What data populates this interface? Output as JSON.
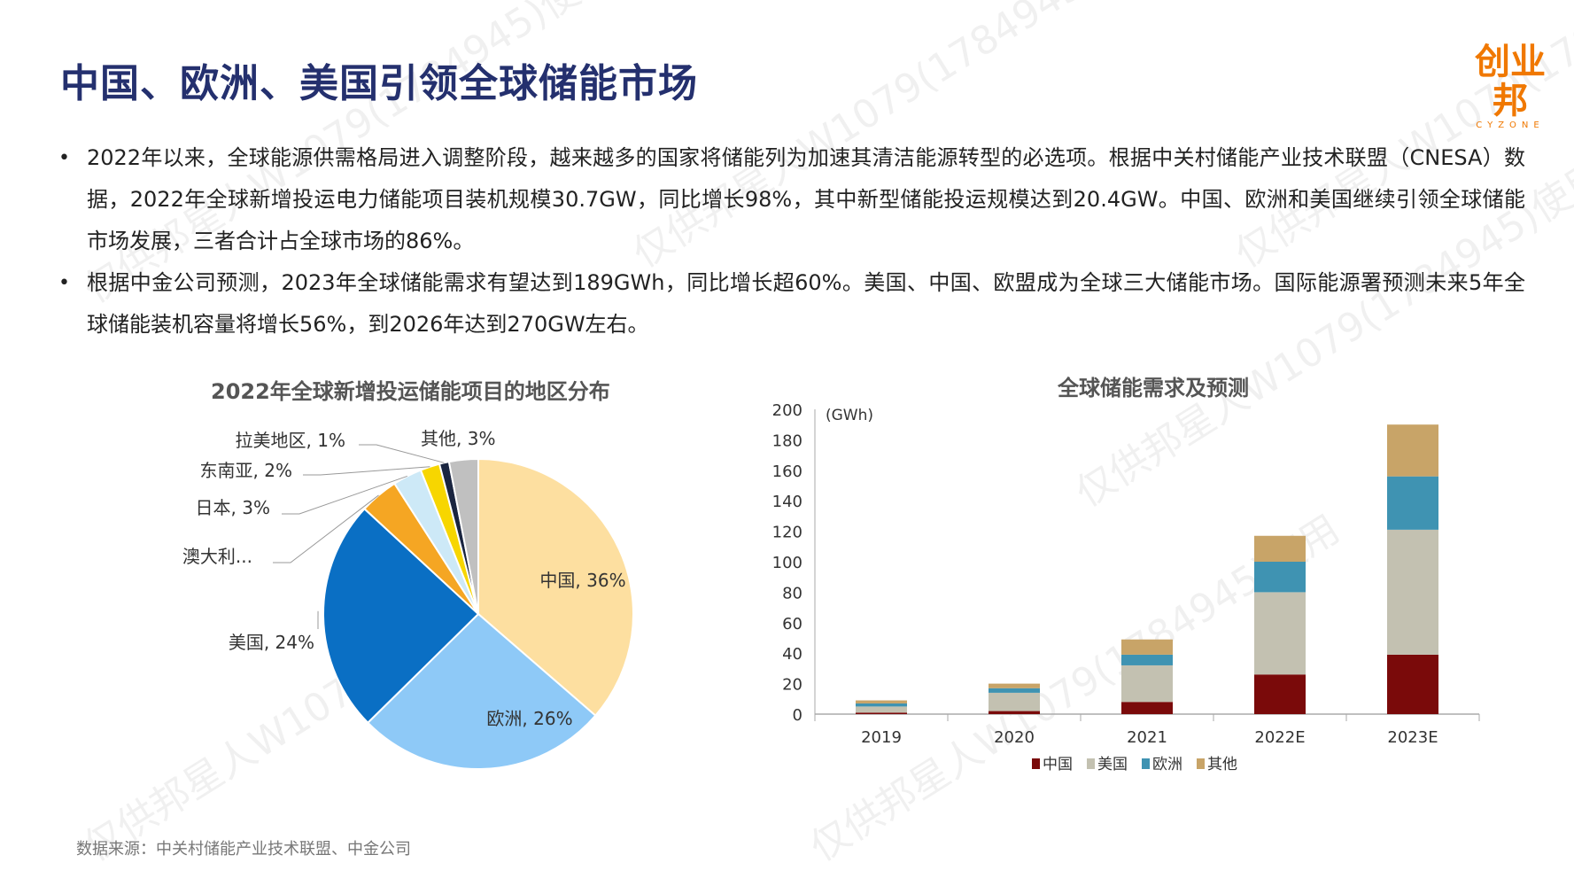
{
  "header": {
    "title": "中国、欧洲、美国引领全球储能市场",
    "logo_main": "创业邦",
    "logo_sub": "CYZONE"
  },
  "bullets": [
    "2022年以来，全球能源供需格局进入调整阶段，越来越多的国家将储能列为加速其清洁能源转型的必选项。根据中关村储能产业技术联盟（CNESA）数据，2022年全球新增投运电力储能项目装机规模30.7GW，同比增长98%，其中新型储能投运规模达到20.4GW。中国、欧洲和美国继续引领全球储能市场发展，三者合计占全球市场的86%。",
    "根据中金公司预测，2023年全球储能需求有望达到189GWh，同比增长超60%。美国、中国、欧盟成为全球三大储能市场。国际能源署预测未来5年全球储能装机容量将增长56%，到2026年达到270GW左右。"
  ],
  "source": "数据来源：中关村储能产业技术联盟、中金公司",
  "watermark": "仅供邦星人W1079(1784945)使用",
  "chart_data": [
    {
      "type": "pie",
      "title": "2022年全球新增投运储能项目的地区分布",
      "slices": [
        {
          "label": "中国, 36%",
          "value": 36,
          "color": "#fddfa0"
        },
        {
          "label": "欧洲, 26%",
          "value": 26,
          "color": "#8ec9f7"
        },
        {
          "label": "美国, 24%",
          "value": 24,
          "color": "#0a6fc4"
        },
        {
          "label": "澳大利...",
          "value": 4,
          "color": "#f5a623"
        },
        {
          "label": "日本, 3%",
          "value": 3,
          "color": "#cde9f7"
        },
        {
          "label": "东南亚, 2%",
          "value": 2,
          "color": "#f7d600"
        },
        {
          "label": "拉美地区, 1%",
          "value": 1,
          "color": "#1a2540"
        },
        {
          "label": "其他, 3%",
          "value": 3,
          "color": "#c0c0c0"
        }
      ]
    },
    {
      "type": "bar",
      "stacked": true,
      "title": "全球储能需求及预测",
      "unit_label": "(GWh)",
      "categories": [
        "2019",
        "2020",
        "2021",
        "2022E",
        "2023E"
      ],
      "ylim": [
        0,
        200
      ],
      "yticks": [
        "0",
        "20",
        "40",
        "60",
        "80",
        "100",
        "120",
        "140",
        "160",
        "180",
        "200"
      ],
      "series": [
        {
          "name": "中国",
          "color": "#7a0a0a",
          "values": [
            1,
            2,
            8,
            26,
            39
          ]
        },
        {
          "name": "美国",
          "color": "#c3c1b1",
          "values": [
            4,
            12,
            24,
            54,
            82
          ]
        },
        {
          "name": "欧洲",
          "color": "#3f93b2",
          "values": [
            2,
            3,
            7,
            20,
            35
          ]
        },
        {
          "name": "其他",
          "color": "#c8a468",
          "values": [
            2,
            3,
            10,
            17,
            34
          ]
        }
      ],
      "legend_position": "bottom"
    }
  ]
}
